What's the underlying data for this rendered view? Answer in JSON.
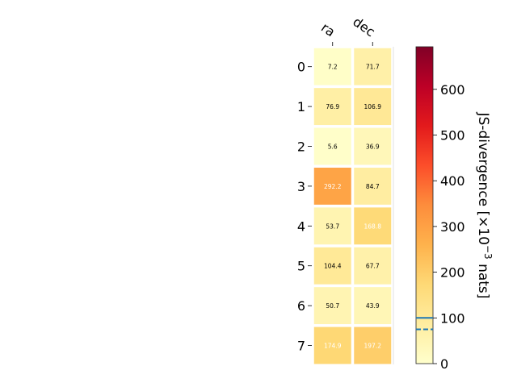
{
  "chart_data": {
    "type": "heatmap",
    "columns": [
      "ra",
      "dec"
    ],
    "rows": [
      "0",
      "1",
      "2",
      "3",
      "4",
      "5",
      "6",
      "7"
    ],
    "values": [
      [
        7.2,
        71.7
      ],
      [
        76.9,
        106.9
      ],
      [
        5.6,
        36.9
      ],
      [
        292.2,
        84.7
      ],
      [
        53.7,
        168.8
      ],
      [
        104.4,
        67.7
      ],
      [
        50.7,
        43.9
      ],
      [
        174.9,
        197.2
      ]
    ],
    "cell_labels": [
      [
        "7.2",
        "71.7"
      ],
      [
        "76.9",
        "106.9"
      ],
      [
        "5.6",
        "36.9"
      ],
      [
        "292.2",
        "84.7"
      ],
      [
        "53.7",
        "168.8"
      ],
      [
        "104.4",
        "67.7"
      ],
      [
        "50.7",
        "43.9"
      ],
      [
        "174.9",
        "197.2"
      ]
    ],
    "colorbar": {
      "label": "JS-divergence [×10",
      "label_exp": "−3",
      "label_unit": " nats]",
      "range": [
        0,
        693.1
      ],
      "ticks": [
        "0",
        "100",
        "200",
        "300",
        "400",
        "500",
        "600"
      ],
      "tick_values": [
        0,
        100,
        200,
        300,
        400,
        500,
        600
      ],
      "solid_line_value": 100,
      "dashed_line_value": 75,
      "line_color": "#1f77b4",
      "colormap": [
        "#ffffcc",
        "#ffeda0",
        "#fed976",
        "#feb24c",
        "#fd8d3c",
        "#fc4e2a",
        "#e31a1c",
        "#bd0026",
        "#800026"
      ]
    }
  }
}
